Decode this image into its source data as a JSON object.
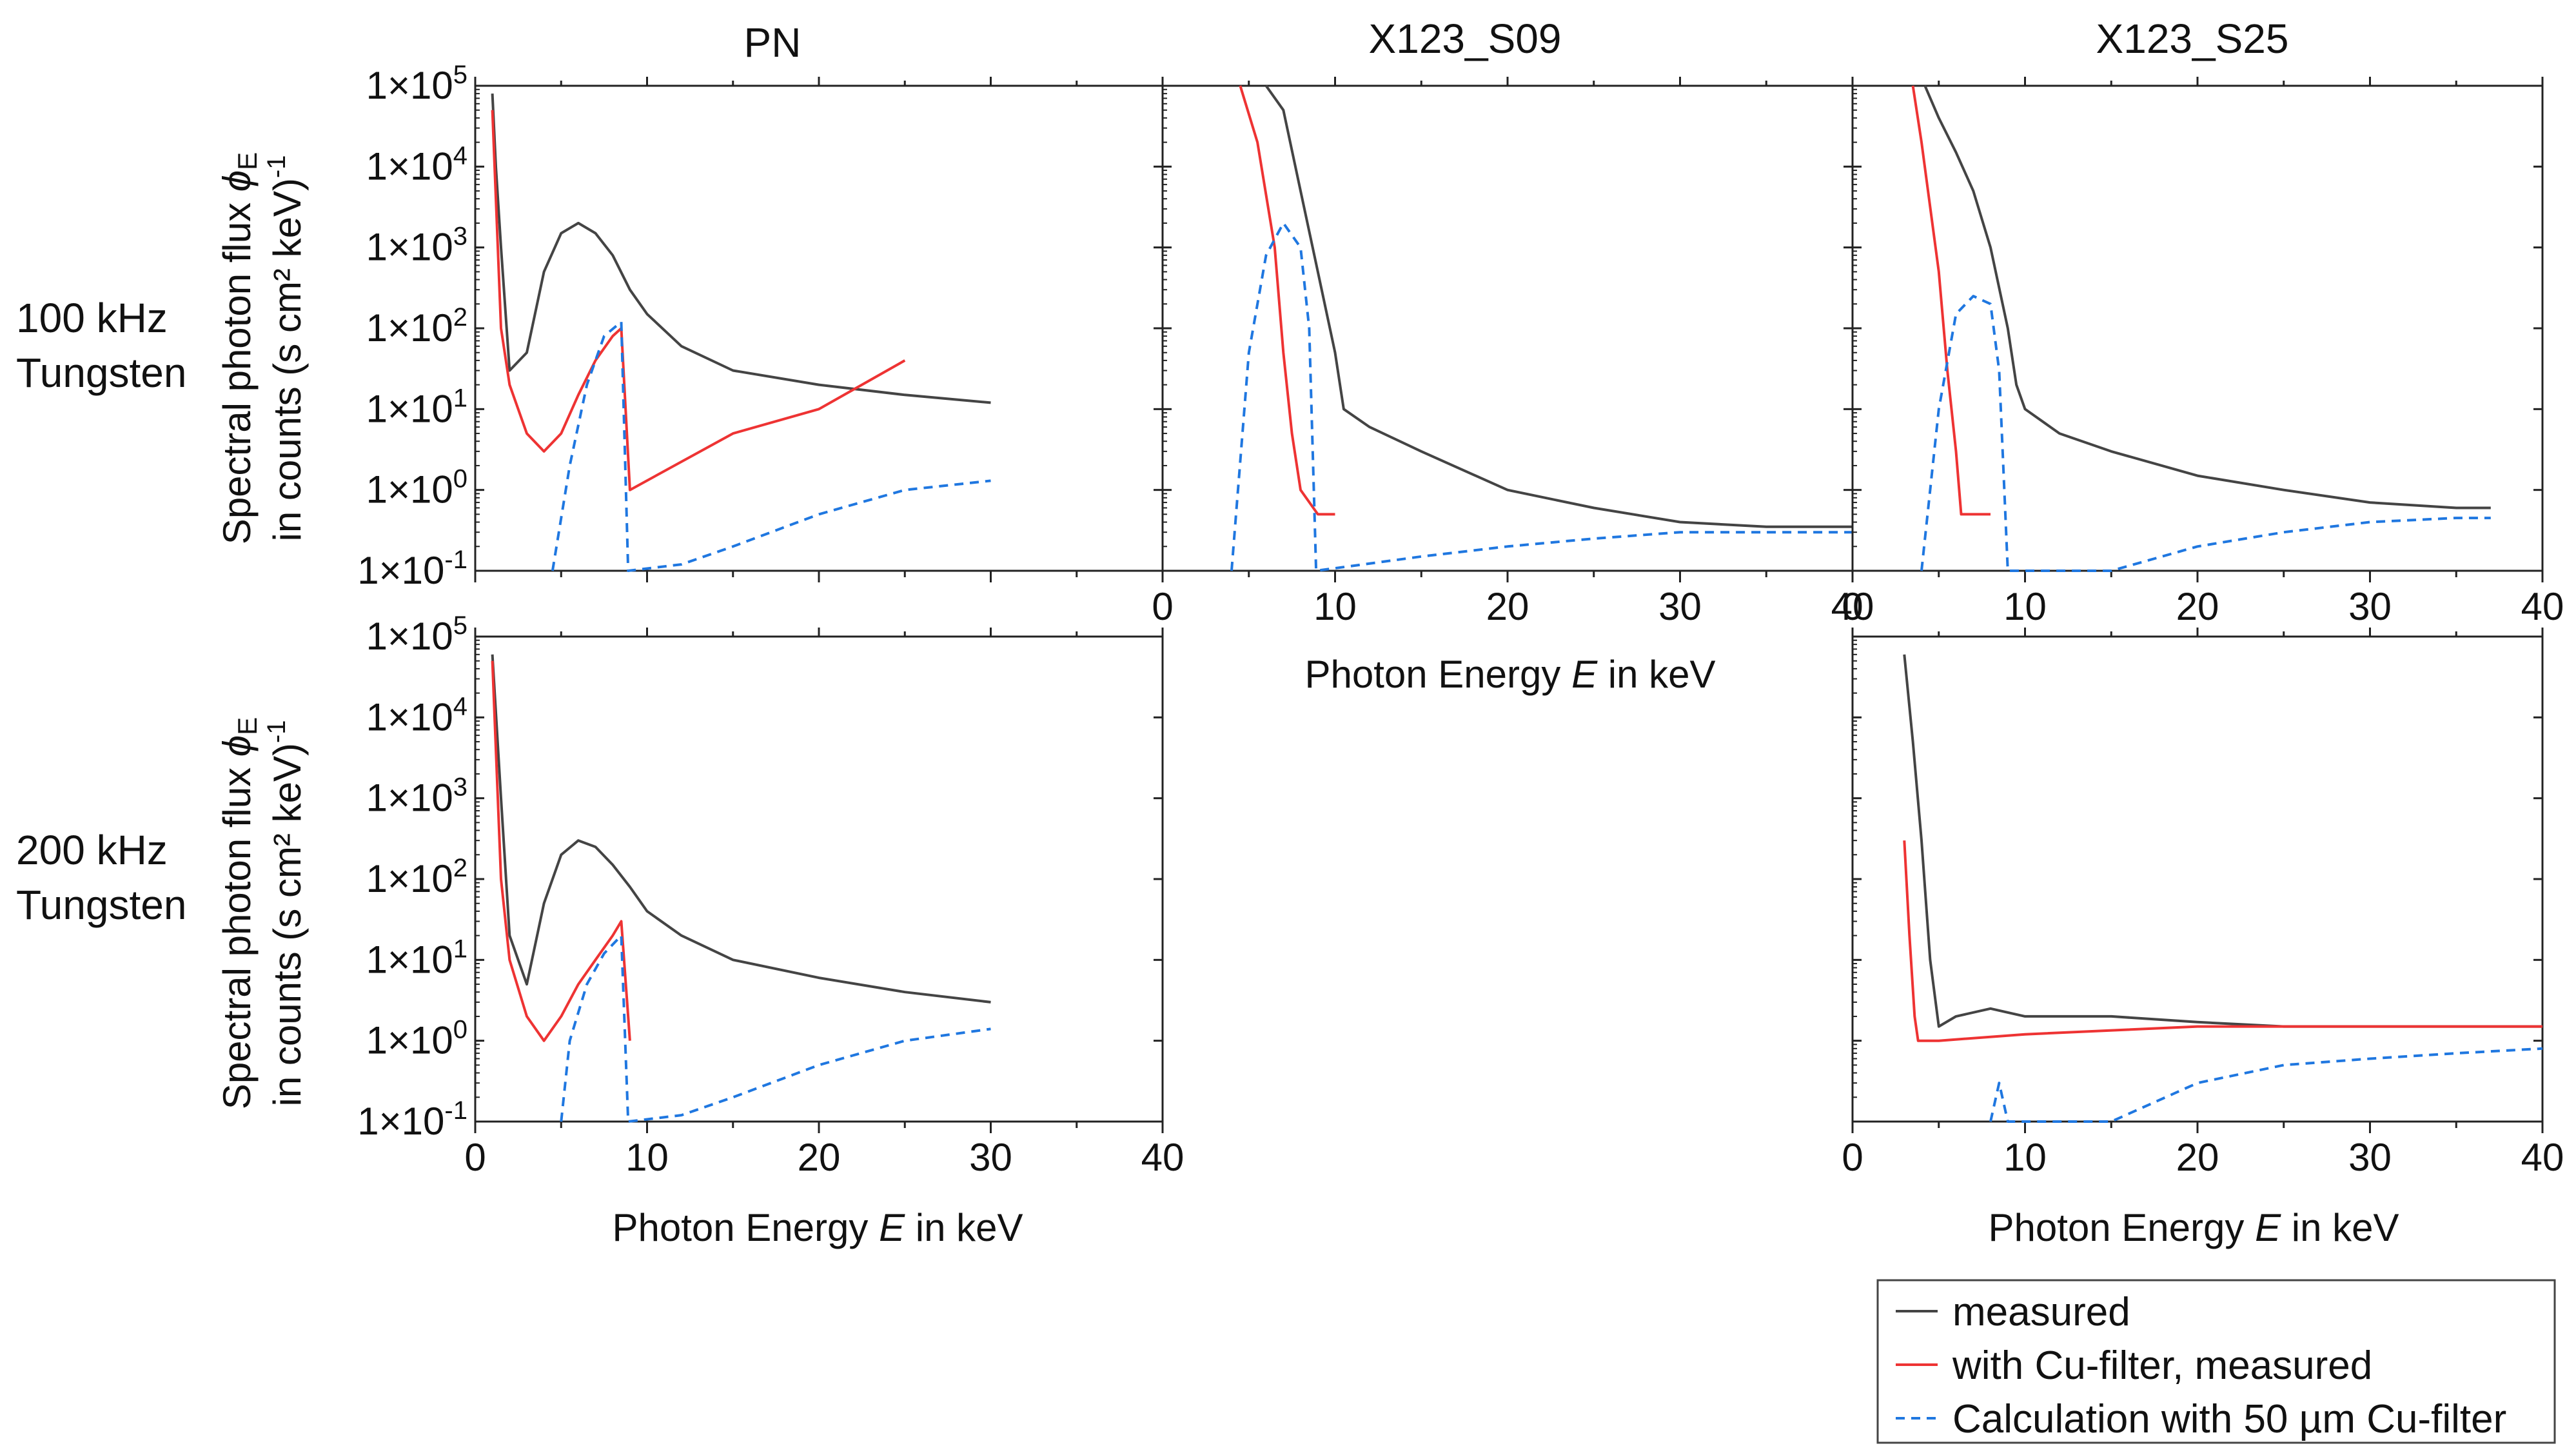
{
  "figure": {
    "column_titles": [
      "PN",
      "X123_S09",
      "X123_S25"
    ],
    "row_labels": [
      {
        "line1": "100 kHz",
        "line2": "Tungsten"
      },
      {
        "line1": "200 kHz",
        "line2": "Tungsten"
      }
    ],
    "y_axis_title": {
      "line1": "Spectral photon flux",
      "phi": "ϕ",
      "sub": "E",
      "line2": "in counts (s cm² keV)",
      "sup": "-1"
    },
    "x_axis_title": {
      "prefix": "Photon Energy ",
      "var": "E",
      "suffix": " in keV"
    },
    "y_tick_labels": [
      "1×10-1",
      "1×100",
      "1×101",
      "1×102",
      "1×103",
      "1×104",
      "1×105"
    ],
    "y_tick_mantissa": "1×10",
    "y_tick_exponents": [
      "-1",
      "0",
      "1",
      "2",
      "3",
      "4",
      "5"
    ],
    "x_tick_labels": [
      "0",
      "10",
      "20",
      "30",
      "40"
    ],
    "colors": {
      "measured": "#444444",
      "filtered": "#ee3333",
      "calculation": "#1f77e0"
    }
  },
  "legend": {
    "items": [
      {
        "label": "measured",
        "style": "solid",
        "color": "#444444"
      },
      {
        "label": "with Cu-filter, measured",
        "style": "solid",
        "color": "#ee3333"
      },
      {
        "label": "Calculation with 50 µm Cu-filter",
        "style": "dashed",
        "color": "#1f77e0"
      }
    ]
  },
  "chart_data": [
    {
      "type": "line",
      "id": "pn_100",
      "title": "PN",
      "row_label": "100 kHz Tungsten",
      "xlabel": "Photon Energy E in keV",
      "ylabel": "Spectral photon flux ϕE in counts (s cm² keV)-1",
      "xlim": [
        0,
        40
      ],
      "ylim": [
        0.1,
        100000
      ],
      "yscale": "log",
      "series": [
        {
          "name": "measured",
          "x": [
            1.0,
            1.2,
            1.5,
            2.0,
            3.0,
            4.0,
            5.0,
            6.0,
            7.0,
            8.0,
            9.0,
            10.0,
            12.0,
            15.0,
            20.0,
            25.0,
            30.0
          ],
          "y": [
            80000,
            10000,
            1000,
            30,
            50,
            500,
            1500,
            2000,
            1500,
            800,
            300,
            150,
            60,
            30,
            20,
            15,
            12
          ]
        },
        {
          "name": "with Cu-filter, measured",
          "x": [
            1.0,
            1.5,
            2.0,
            3.0,
            4.0,
            5.0,
            6.0,
            7.0,
            8.0,
            8.5,
            9.0,
            15.0,
            20.0,
            25.0
          ],
          "y": [
            50000,
            100,
            20,
            5,
            3,
            5,
            15,
            40,
            80,
            100,
            1,
            5,
            10,
            40
          ]
        },
        {
          "name": "Calculation with 50 µm Cu-filter",
          "x": [
            4.5,
            5.5,
            6.5,
            7.5,
            8.5,
            8.9,
            12.0,
            15.0,
            20.0,
            25.0,
            30.0
          ],
          "y": [
            0.1,
            2,
            20,
            80,
            120,
            0.1,
            0.12,
            0.2,
            0.5,
            1.0,
            1.3
          ]
        }
      ]
    },
    {
      "type": "line",
      "id": "s09_100",
      "title": "X123_S09",
      "row_label": "100 kHz Tungsten",
      "xlabel": "Photon Energy E in keV",
      "xlim": [
        0,
        40
      ],
      "ylim": [
        0.1,
        100000
      ],
      "yscale": "log",
      "series": [
        {
          "name": "measured",
          "x": [
            6.0,
            7.0,
            8.0,
            9.0,
            10.0,
            10.5,
            12.0,
            15.0,
            20.0,
            25.0,
            30.0,
            35.0,
            40.0
          ],
          "y": [
            100000,
            50000,
            5000,
            500,
            50,
            10,
            6,
            3,
            1,
            0.6,
            0.4,
            0.35,
            0.35
          ]
        },
        {
          "name": "with Cu-filter, measured",
          "x": [
            4.5,
            5.5,
            6.5,
            7.0,
            7.5,
            8.0,
            9.0,
            10.0
          ],
          "y": [
            100000,
            20000,
            1000,
            50,
            5,
            1,
            0.5,
            0.5
          ]
        },
        {
          "name": "Calculation with 50 µm Cu-filter",
          "x": [
            4.0,
            5.0,
            6.0,
            7.0,
            8.0,
            8.5,
            8.9,
            15.0,
            20.0,
            25.0,
            30.0,
            35.0,
            40.0
          ],
          "y": [
            0.1,
            50,
            800,
            2000,
            1000,
            100,
            0.1,
            0.15,
            0.2,
            0.25,
            0.3,
            0.3,
            0.3
          ]
        }
      ]
    },
    {
      "type": "line",
      "id": "s25_100",
      "title": "X123_S25",
      "row_label": "100 kHz Tungsten",
      "xlabel": "",
      "xlim": [
        0,
        40
      ],
      "ylim": [
        0.1,
        100000
      ],
      "yscale": "log",
      "series": [
        {
          "name": "measured",
          "x": [
            4.2,
            5.0,
            6.0,
            7.0,
            8.0,
            9.0,
            9.5,
            10.0,
            12.0,
            15.0,
            20.0,
            25.0,
            30.0,
            35.0,
            37.0
          ],
          "y": [
            100000,
            40000,
            15000,
            5000,
            1000,
            100,
            20,
            10,
            5,
            3,
            1.5,
            1,
            0.7,
            0.6,
            0.6
          ]
        },
        {
          "name": "with Cu-filter, measured",
          "x": [
            3.5,
            4.0,
            5.0,
            5.5,
            6.0,
            6.3,
            7.0,
            8.0
          ],
          "y": [
            100000,
            20000,
            500,
            30,
            3,
            0.5,
            0.5,
            0.5
          ]
        },
        {
          "name": "Calculation with 50 µm Cu-filter",
          "x": [
            4.0,
            5.0,
            6.0,
            7.0,
            8.0,
            8.5,
            9.0,
            15.0,
            20.0,
            25.0,
            30.0,
            35.0,
            37.0
          ],
          "y": [
            0.1,
            10,
            150,
            250,
            200,
            30,
            0.1,
            0.1,
            0.2,
            0.3,
            0.4,
            0.45,
            0.45
          ]
        }
      ]
    },
    {
      "type": "line",
      "id": "pn_200",
      "title": "PN",
      "row_label": "200 kHz Tungsten",
      "xlabel": "Photon Energy E in keV",
      "ylabel": "Spectral photon flux ϕE in counts (s cm² keV)-1",
      "xlim": [
        0,
        40
      ],
      "ylim": [
        0.1,
        100000
      ],
      "yscale": "log",
      "series": [
        {
          "name": "measured",
          "x": [
            1.0,
            1.5,
            2.0,
            3.0,
            4.0,
            5.0,
            6.0,
            7.0,
            8.0,
            9.0,
            10.0,
            12.0,
            15.0,
            20.0,
            25.0,
            30.0
          ],
          "y": [
            60000,
            1000,
            20,
            5,
            50,
            200,
            300,
            250,
            150,
            80,
            40,
            20,
            10,
            6,
            4,
            3
          ]
        },
        {
          "name": "with Cu-filter, measured",
          "x": [
            1.0,
            1.5,
            2.0,
            3.0,
            4.0,
            5.0,
            6.0,
            7.0,
            8.0,
            8.5,
            9.0
          ],
          "y": [
            50000,
            100,
            10,
            2,
            1,
            2,
            5,
            10,
            20,
            30,
            1
          ]
        },
        {
          "name": "Calculation with 50 µm Cu-filter",
          "x": [
            5.0,
            5.5,
            6.5,
            7.5,
            8.5,
            8.9,
            12.0,
            15.0,
            20.0,
            25.0,
            30.0
          ],
          "y": [
            0.1,
            1,
            5,
            12,
            20,
            0.1,
            0.12,
            0.2,
            0.5,
            1.0,
            1.4
          ]
        }
      ]
    },
    {
      "type": "line",
      "id": "s25_200",
      "title": "X123_S25",
      "row_label": "200 kHz Tungsten",
      "xlabel": "Photon Energy E in keV",
      "xlim": [
        0,
        40
      ],
      "ylim": [
        0.1,
        100000
      ],
      "yscale": "log",
      "series": [
        {
          "name": "measured",
          "x": [
            3.0,
            3.5,
            4.0,
            4.5,
            5.0,
            6.0,
            8.0,
            10.0,
            15.0,
            20.0,
            25.0,
            30.0,
            35.0,
            40.0
          ],
          "y": [
            60000,
            5000,
            300,
            10,
            1.5,
            2,
            2.5,
            2,
            2,
            1.7,
            1.5,
            1.5,
            1.5,
            1.5
          ]
        },
        {
          "name": "with Cu-filter, measured",
          "x": [
            3.0,
            3.3,
            3.6,
            3.8,
            5.0,
            10.0,
            20.0,
            30.0,
            40.0
          ],
          "y": [
            300,
            20,
            2,
            1,
            1,
            1.2,
            1.5,
            1.5,
            1.5
          ]
        },
        {
          "name": "Calculation with 50 µm Cu-filter",
          "x": [
            8.0,
            8.5,
            9.0,
            15.0,
            20.0,
            25.0,
            30.0,
            35.0,
            40.0
          ],
          "y": [
            0.1,
            0.3,
            0.1,
            0.1,
            0.3,
            0.5,
            0.6,
            0.7,
            0.8
          ]
        }
      ]
    }
  ]
}
